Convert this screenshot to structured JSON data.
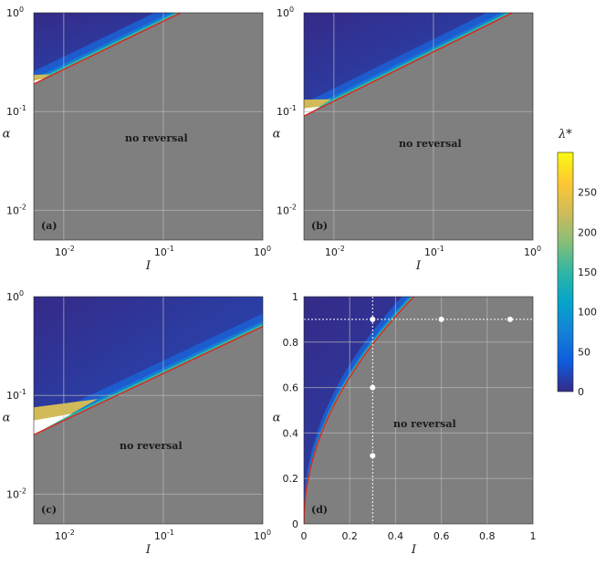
{
  "chart_data": [
    {
      "type": "heatmap",
      "panel_label": "(a)",
      "xlabel": "I",
      "ylabel": "α",
      "xscale": "log",
      "yscale": "log",
      "xlim": [
        0.005,
        1
      ],
      "ylim": [
        0.005,
        1
      ],
      "x_ticks": [
        {
          "base": "10",
          "exp": "-2"
        },
        {
          "base": "10",
          "exp": "-1"
        },
        {
          "base": "10",
          "exp": "0"
        }
      ],
      "y_ticks": [
        {
          "base": "10",
          "exp": "-2"
        },
        {
          "base": "10",
          "exp": "-1"
        },
        {
          "base": "10",
          "exp": "0"
        }
      ],
      "annotation": "no reversal",
      "boundary": {
        "x": [
          0.005,
          0.15
        ],
        "y": [
          0.19,
          1.0
        ]
      },
      "grid": true
    },
    {
      "type": "heatmap",
      "panel_label": "(b)",
      "xlabel": "I",
      "ylabel": "α",
      "xscale": "log",
      "yscale": "log",
      "xlim": [
        0.005,
        1
      ],
      "ylim": [
        0.005,
        1
      ],
      "x_ticks": [
        {
          "base": "10",
          "exp": "-2"
        },
        {
          "base": "10",
          "exp": "-1"
        },
        {
          "base": "10",
          "exp": "0"
        }
      ],
      "y_ticks": [
        {
          "base": "10",
          "exp": "-2"
        },
        {
          "base": "10",
          "exp": "-1"
        },
        {
          "base": "10",
          "exp": "0"
        }
      ],
      "annotation": "no reversal",
      "boundary": {
        "x": [
          0.005,
          0.62
        ],
        "y": [
          0.09,
          1.0
        ]
      },
      "grid": true
    },
    {
      "type": "heatmap",
      "panel_label": "(c)",
      "xlabel": "I",
      "ylabel": "α",
      "xscale": "log",
      "yscale": "log",
      "xlim": [
        0.005,
        1
      ],
      "ylim": [
        0.005,
        1
      ],
      "x_ticks": [
        {
          "base": "10",
          "exp": "-2"
        },
        {
          "base": "10",
          "exp": "-1"
        },
        {
          "base": "10",
          "exp": "0"
        }
      ],
      "y_ticks": [
        {
          "base": "10",
          "exp": "-2"
        },
        {
          "base": "10",
          "exp": "-1"
        },
        {
          "base": "10",
          "exp": "0"
        }
      ],
      "annotation": "no reversal",
      "boundary": {
        "x": [
          0.005,
          1.0
        ],
        "y": [
          0.04,
          0.5
        ]
      },
      "grid": true
    },
    {
      "type": "heatmap",
      "panel_label": "(d)",
      "xlabel": "I",
      "ylabel": "α",
      "xscale": "linear",
      "yscale": "linear",
      "xlim": [
        0,
        1
      ],
      "ylim": [
        0,
        1
      ],
      "x_ticks": [
        "0",
        "0.2",
        "0.4",
        "0.6",
        "0.8",
        "1"
      ],
      "y_ticks": [
        "0",
        "0.2",
        "0.4",
        "0.6",
        "0.8",
        "1"
      ],
      "annotation": "no reversal",
      "boundary_formula": "alpha = sqrt(I / 0.48)",
      "reference_lines": {
        "vertical_x": 0.3,
        "horizontal_y": 0.9
      },
      "points": [
        {
          "x": 0.3,
          "y": 0.9
        },
        {
          "x": 0.6,
          "y": 0.9
        },
        {
          "x": 0.9,
          "y": 0.9
        },
        {
          "x": 0.3,
          "y": 0.6
        },
        {
          "x": 0.3,
          "y": 0.3
        }
      ],
      "grid": true
    }
  ],
  "colorbar": {
    "label": "λ*",
    "ticks": [
      "0",
      "50",
      "100",
      "150",
      "200",
      "250"
    ],
    "range": [
      0,
      300
    ],
    "colors": [
      "#352a87",
      "#0f5cdd",
      "#1481d6",
      "#06a4ca",
      "#2eb7a4",
      "#87bf77",
      "#d1bb59",
      "#fec832",
      "#f9fb0e"
    ]
  },
  "colors": {
    "no_reversal_fill": "#7f7f7f",
    "boundary_line": "#e0241b",
    "grid": "#b8b8b8"
  }
}
